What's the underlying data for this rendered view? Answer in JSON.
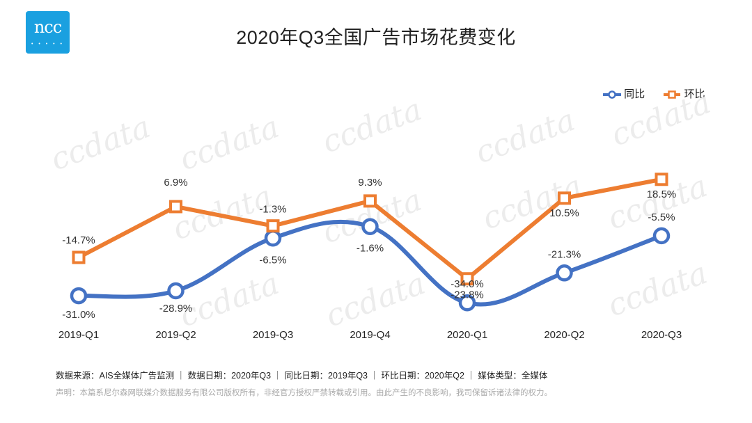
{
  "logo": {
    "text": "ncc",
    "dots": "• • • • •"
  },
  "legend": {
    "yoy_label": "同比",
    "qoq_label": "环比"
  },
  "watermark": "ccdata",
  "colors": {
    "yoy": "#4472c4",
    "qoq": "#ed7d31",
    "logo": "#1aa0e0"
  },
  "chart_data": {
    "type": "line",
    "title": "2020年Q3全国广告市场花费变化",
    "categories": [
      "2019-Q1",
      "2019-Q2",
      "2019-Q3",
      "2019-Q4",
      "2020-Q1",
      "2020-Q2",
      "2020-Q3"
    ],
    "series": [
      {
        "name": "同比",
        "values": [
          -31.0,
          -28.9,
          -6.5,
          -1.6,
          -34.0,
          -21.3,
          -5.5
        ],
        "labels": [
          "-31.0%",
          "-28.9%",
          "-6.5%",
          "-1.6%",
          "-34.0%",
          "-21.3%",
          "-5.5%"
        ],
        "smooth": true,
        "marker": "circle"
      },
      {
        "name": "环比",
        "values": [
          -14.7,
          6.9,
          -1.3,
          9.3,
          -23.8,
          10.5,
          18.5
        ],
        "labels": [
          "-14.7%",
          "6.9%",
          "-1.3%",
          "9.3%",
          "-23.8%",
          "10.5%",
          "18.5%"
        ],
        "smooth": false,
        "marker": "square"
      }
    ],
    "legend_position": "top-right",
    "grid": false,
    "y_axis_visible": false
  },
  "footer": {
    "source": "数据来源：AIS全媒体广告监测 ｜ 数据日期：2020年Q3 ｜ 同比日期：2019年Q3 ｜ 环比日期：2020年Q2 ｜ 媒体类型：全媒体",
    "disclaimer": "声明：本篇系尼尔森网联媒介数据服务有限公司版权所有，非经官方授权严禁转载或引用。由此产生的不良影响，我司保留诉诸法律的权力。"
  }
}
